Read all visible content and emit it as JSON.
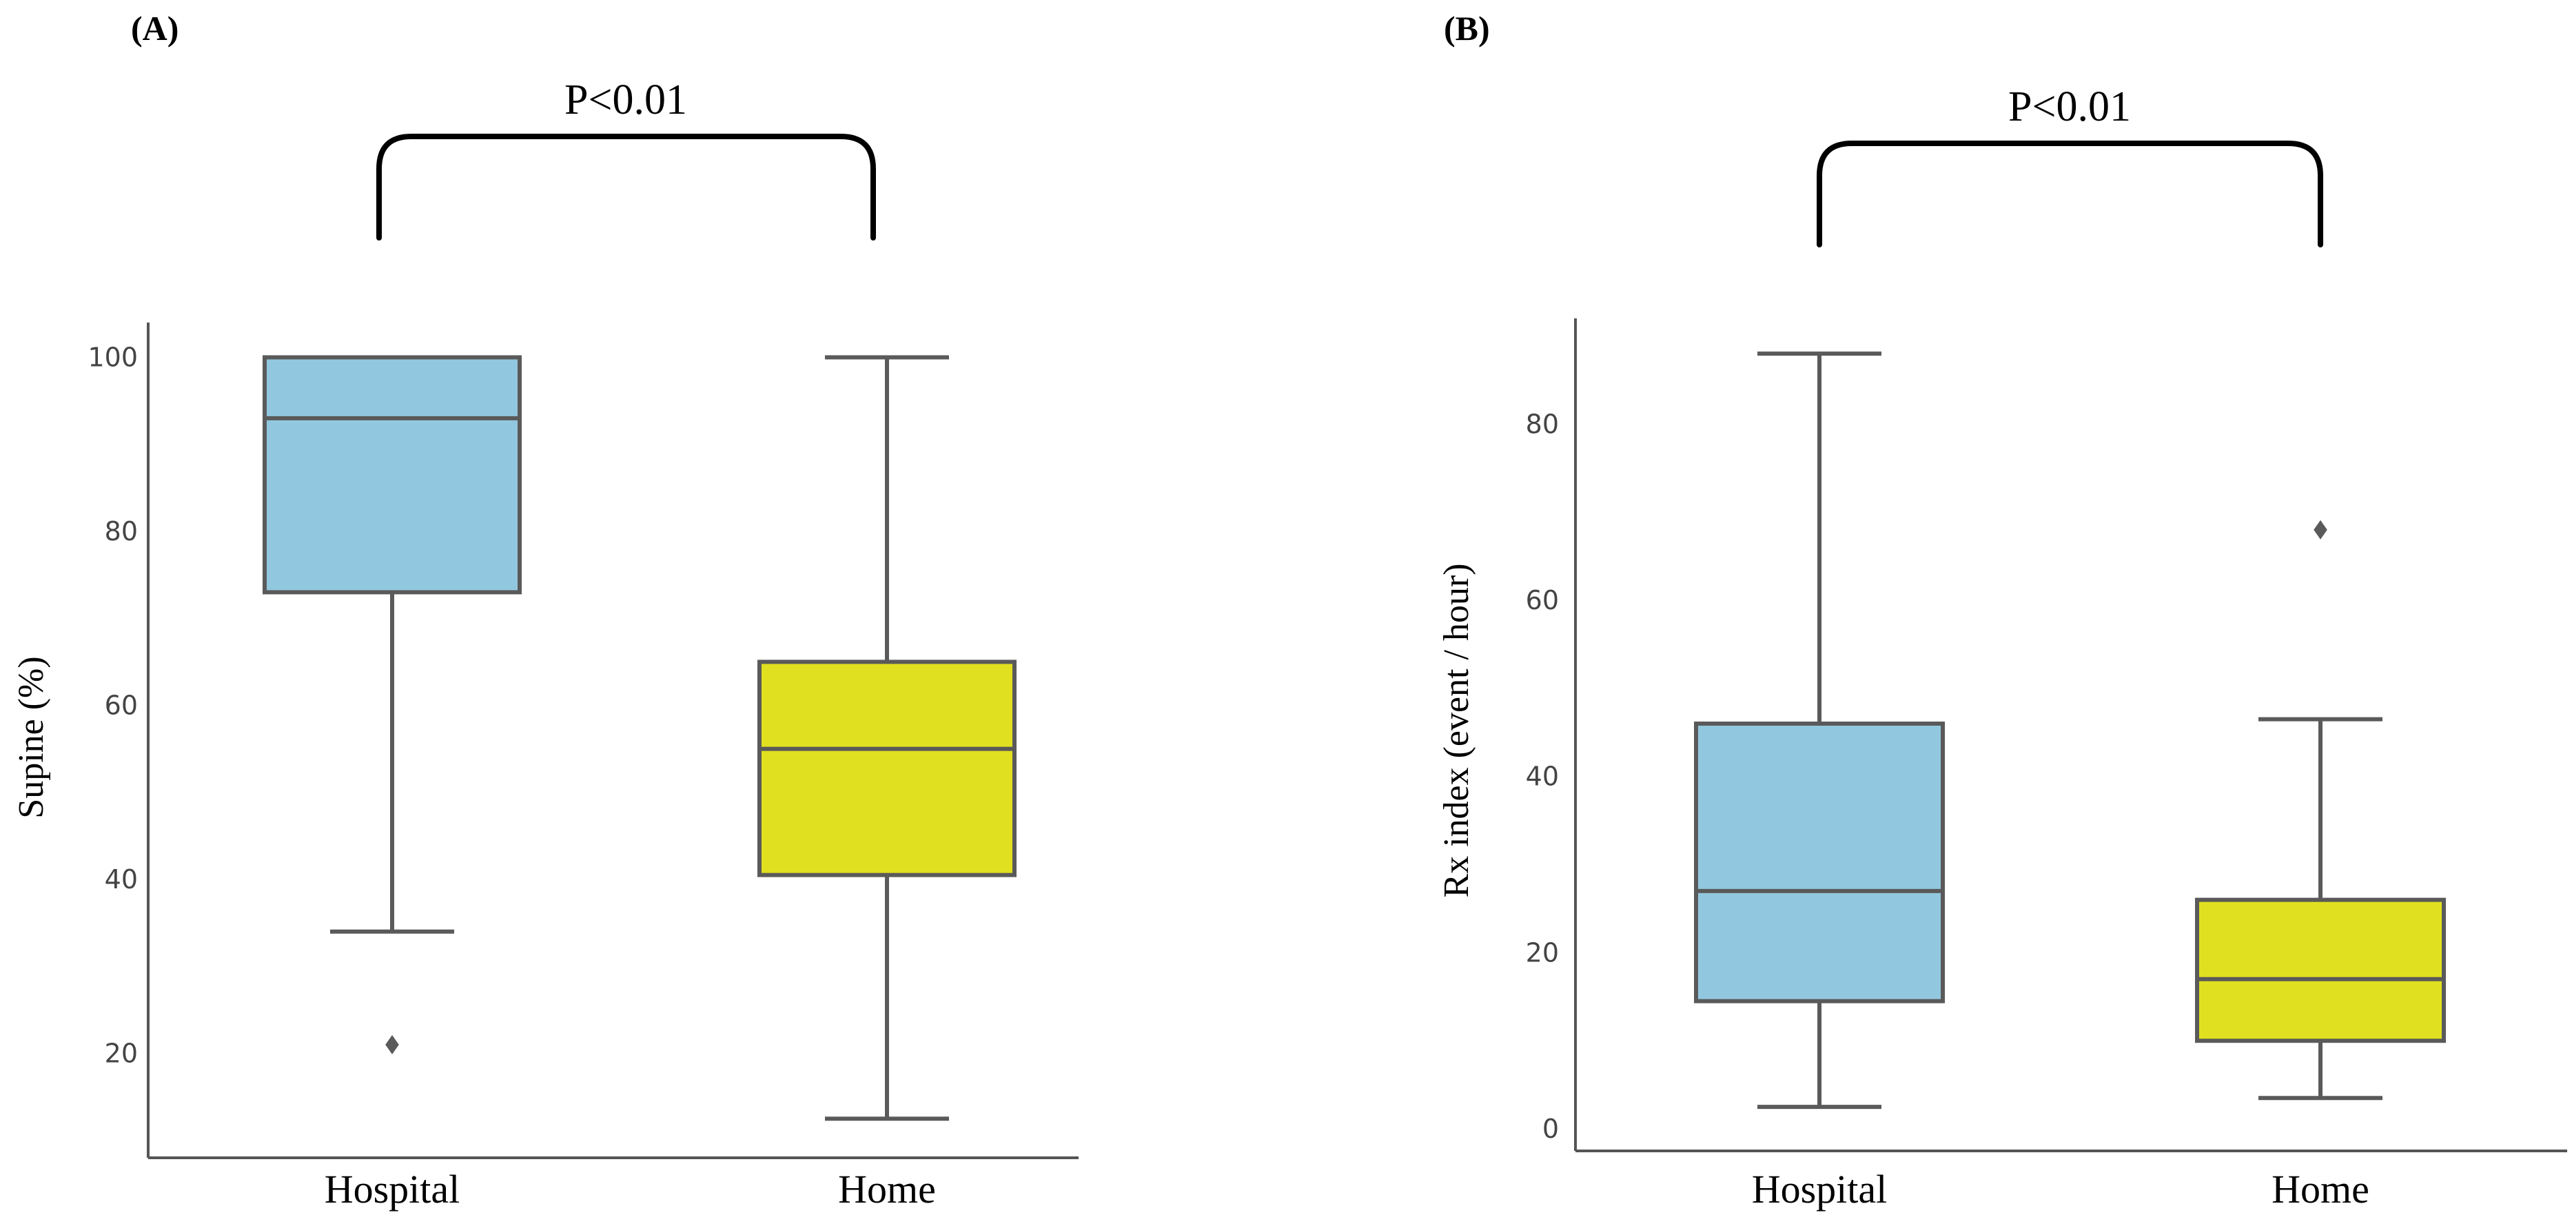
{
  "chart_data": [
    {
      "panel": "(A)",
      "type": "box",
      "ylabel": "Supine (%)",
      "xlabel": "",
      "ylim": [
        8,
        104
      ],
      "yticks": [
        20,
        40,
        60,
        80,
        100
      ],
      "categories": [
        "Hospital",
        "Home"
      ],
      "colors": [
        "#92c8df",
        "#e0e020"
      ],
      "boxes": [
        {
          "name": "Hospital",
          "whislo": 34,
          "q1": 73,
          "med": 93,
          "q3": 100,
          "whishi": 100,
          "outliers": [
            21
          ]
        },
        {
          "name": "Home",
          "whislo": 12.5,
          "q1": 40.5,
          "med": 55,
          "q3": 65,
          "whishi": 100,
          "outliers": []
        }
      ],
      "annotation": "P<0.01"
    },
    {
      "panel": "(B)",
      "type": "box",
      "ylabel": "Rx index (event / hour)",
      "xlabel": "",
      "ylim": [
        -2.5,
        92
      ],
      "yticks": [
        0,
        20,
        40,
        60,
        80
      ],
      "categories": [
        "Hospital",
        "Home"
      ],
      "colors": [
        "#92c8df",
        "#e0e020"
      ],
      "boxes": [
        {
          "name": "Hospital",
          "whislo": 2.5,
          "q1": 14.5,
          "med": 27,
          "q3": 46,
          "whishi": 88,
          "outliers": []
        },
        {
          "name": "Home",
          "whislo": 3.5,
          "q1": 10,
          "med": 17,
          "q3": 26,
          "whishi": 46.5,
          "outliers": [
            68
          ]
        }
      ],
      "annotation": "P<0.01"
    }
  ]
}
